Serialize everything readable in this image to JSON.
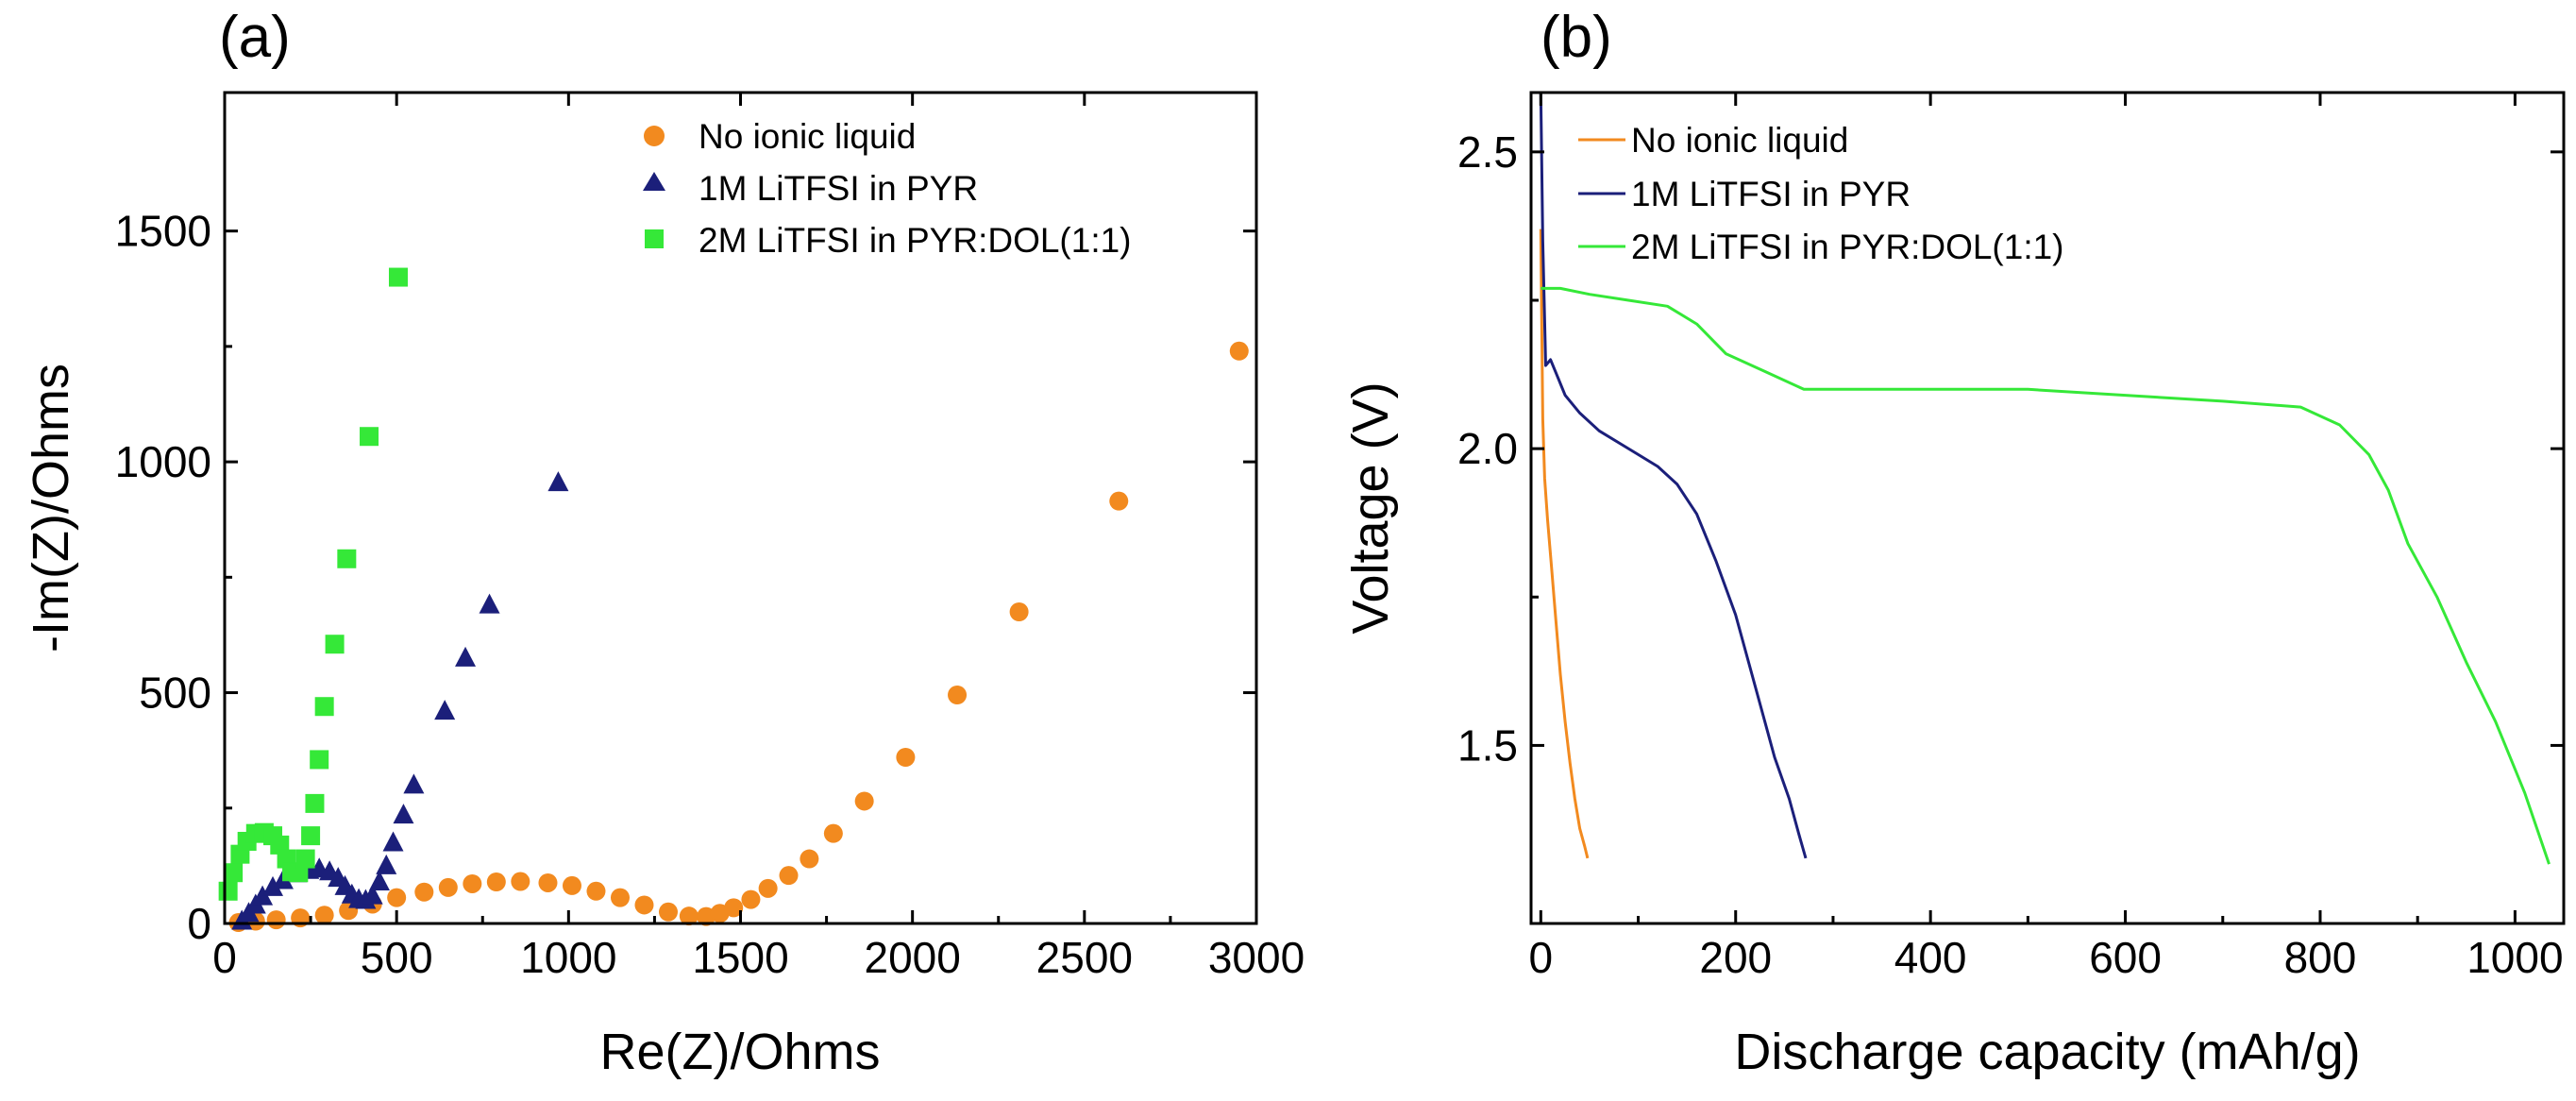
{
  "colors": {
    "no_ionic": "#f28a1f",
    "pyr": "#1b1f7a",
    "pyr_dol": "#35e838"
  },
  "chart_data": [
    {
      "panel": "(a)",
      "type": "scatter",
      "title": "",
      "xlabel": "Re(Z)/Ohms",
      "ylabel": "-Im(Z)/Ohms",
      "xlim": [
        0,
        3000
      ],
      "ylim": [
        0,
        1800
      ],
      "xticks": [
        0,
        500,
        1000,
        1500,
        2000,
        2500,
        3000
      ],
      "yticks": [
        0,
        500,
        1000,
        1500
      ],
      "legend_position": "top-right",
      "series": [
        {
          "name": "No ionic liquid",
          "color_key": "no_ionic",
          "marker": "circle",
          "points": [
            [
              40,
              2
            ],
            [
              90,
              5
            ],
            [
              150,
              8
            ],
            [
              220,
              12
            ],
            [
              290,
              18
            ],
            [
              360,
              28
            ],
            [
              430,
              42
            ],
            [
              500,
              56
            ],
            [
              580,
              68
            ],
            [
              650,
              78
            ],
            [
              720,
              86
            ],
            [
              790,
              90
            ],
            [
              860,
              91
            ],
            [
              940,
              88
            ],
            [
              1010,
              82
            ],
            [
              1080,
              70
            ],
            [
              1150,
              56
            ],
            [
              1220,
              40
            ],
            [
              1290,
              25
            ],
            [
              1350,
              16
            ],
            [
              1400,
              15
            ],
            [
              1440,
              22
            ],
            [
              1480,
              34
            ],
            [
              1530,
              52
            ],
            [
              1580,
              76
            ],
            [
              1640,
              104
            ],
            [
              1700,
              140
            ],
            [
              1770,
              195
            ],
            [
              1860,
              265
            ],
            [
              1980,
              360
            ],
            [
              2130,
              495
            ],
            [
              2310,
              675
            ],
            [
              2600,
              915
            ],
            [
              2950,
              1240
            ]
          ]
        },
        {
          "name": "1M LiTFSI in PYR",
          "color_key": "pyr",
          "marker": "triangle",
          "points": [
            [
              50,
              5
            ],
            [
              70,
              22
            ],
            [
              90,
              40
            ],
            [
              110,
              58
            ],
            [
              140,
              78
            ],
            [
              170,
              93
            ],
            [
              210,
              108
            ],
            [
              245,
              115
            ],
            [
              275,
              118
            ],
            [
              305,
              112
            ],
            [
              330,
              98
            ],
            [
              350,
              80
            ],
            [
              370,
              62
            ],
            [
              390,
              52
            ],
            [
              410,
              50
            ],
            [
              430,
              60
            ],
            [
              450,
              90
            ],
            [
              470,
              125
            ],
            [
              490,
              175
            ],
            [
              520,
              235
            ],
            [
              550,
              300
            ],
            [
              640,
              460
            ],
            [
              700,
              575
            ],
            [
              770,
              690
            ],
            [
              970,
              955
            ]
          ]
        },
        {
          "name": "2M LiTFSI in PYR:DOL(1:1)",
          "color_key": "pyr_dol",
          "marker": "square",
          "points": [
            [
              10,
              70
            ],
            [
              25,
              110
            ],
            [
              45,
              150
            ],
            [
              65,
              178
            ],
            [
              90,
              195
            ],
            [
              115,
              197
            ],
            [
              140,
              190
            ],
            [
              160,
              170
            ],
            [
              180,
              140
            ],
            [
              195,
              112
            ],
            [
              215,
              110
            ],
            [
              235,
              140
            ],
            [
              250,
              190
            ],
            [
              262,
              260
            ],
            [
              275,
              355
            ],
            [
              290,
              470
            ],
            [
              320,
              605
            ],
            [
              355,
              790
            ],
            [
              420,
              1055
            ],
            [
              505,
              1400
            ]
          ]
        }
      ]
    },
    {
      "panel": "(b)",
      "type": "line",
      "title": "",
      "xlabel": "Discharge capacity (mAh/g)",
      "ylabel": "Voltage (V)",
      "xlim": [
        -10,
        1050
      ],
      "ylim": [
        1.2,
        2.6
      ],
      "xticks": [
        0,
        200,
        400,
        600,
        800,
        1000
      ],
      "yticks": [
        1.5,
        2.0,
        2.5
      ],
      "legend_position": "top-left",
      "series": [
        {
          "name": "No ionic liquid",
          "color_key": "no_ionic",
          "x": [
            0,
            1,
            2,
            4,
            7,
            11,
            15,
            20,
            25,
            30,
            35,
            40,
            45,
            48
          ],
          "y": [
            2.37,
            2.2,
            2.05,
            1.95,
            1.88,
            1.8,
            1.72,
            1.62,
            1.54,
            1.47,
            1.41,
            1.36,
            1.33,
            1.31
          ]
        },
        {
          "name": "1M LiTFSI in PYR",
          "color_key": "pyr",
          "x": [
            0,
            2,
            5,
            10,
            15,
            25,
            40,
            60,
            80,
            100,
            120,
            140,
            160,
            180,
            200,
            220,
            240,
            255,
            265,
            272
          ],
          "y": [
            2.6,
            2.35,
            2.14,
            2.15,
            2.13,
            2.09,
            2.06,
            2.03,
            2.01,
            1.99,
            1.97,
            1.94,
            1.89,
            1.81,
            1.72,
            1.6,
            1.48,
            1.41,
            1.35,
            1.31
          ]
        },
        {
          "name": "2M LiTFSI in PYR:DOL(1:1)",
          "color_key": "pyr_dol",
          "x": [
            0,
            20,
            50,
            90,
            130,
            160,
            190,
            230,
            270,
            300,
            400,
            500,
            600,
            700,
            780,
            820,
            850,
            870,
            890,
            920,
            950,
            980,
            1010,
            1035
          ],
          "y": [
            2.27,
            2.27,
            2.26,
            2.25,
            2.24,
            2.21,
            2.16,
            2.13,
            2.1,
            2.1,
            2.1,
            2.1,
            2.09,
            2.08,
            2.07,
            2.04,
            1.99,
            1.93,
            1.84,
            1.75,
            1.64,
            1.54,
            1.42,
            1.3
          ]
        }
      ]
    }
  ]
}
